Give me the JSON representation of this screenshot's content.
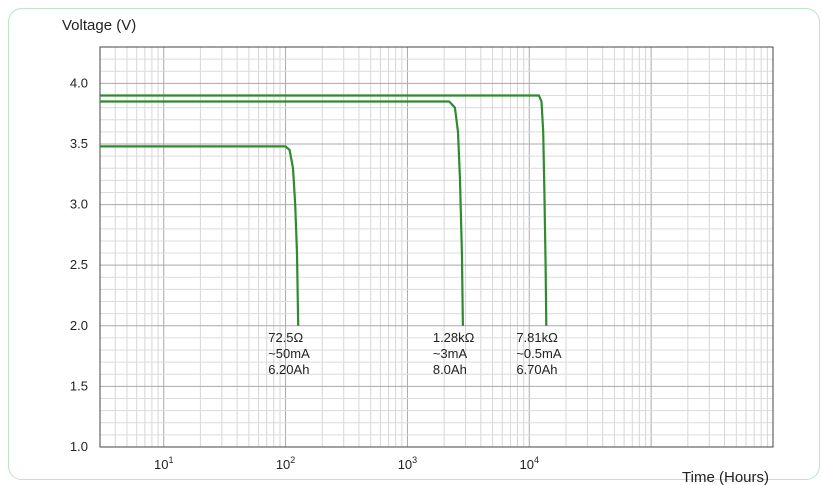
{
  "chart_data": {
    "type": "line",
    "title": "",
    "xlabel": "Time (Hours)",
    "ylabel": "Voltage (V)",
    "x_scale": "log",
    "xlim": [
      3,
      1000000
    ],
    "ylim": [
      1.0,
      4.3
    ],
    "grid": true,
    "y_ticks": [
      "4.0",
      "3.5",
      "3.0",
      "2.5",
      "2.0",
      "1.5",
      "1.0"
    ],
    "x_tick_labels": [
      {
        "base": "10",
        "exp": "1"
      },
      {
        "base": "10",
        "exp": "2"
      },
      {
        "base": "10",
        "exp": "3"
      },
      {
        "base": "10",
        "exp": "4"
      }
    ],
    "line_color": "#2e8b2e",
    "series": [
      {
        "points": [
          [
            3,
            3.48
          ],
          [
            100,
            3.48
          ],
          [
            108,
            3.45
          ],
          [
            115,
            3.3
          ],
          [
            120,
            3.0
          ],
          [
            124,
            2.6
          ],
          [
            127,
            2.0
          ]
        ],
        "annotation": [
          "72.5Ω",
          "~50mA",
          "6.20Ah"
        ]
      },
      {
        "points": [
          [
            3,
            3.85
          ],
          [
            2200,
            3.85
          ],
          [
            2450,
            3.8
          ],
          [
            2600,
            3.6
          ],
          [
            2700,
            3.2
          ],
          [
            2800,
            2.6
          ],
          [
            2850,
            2.0
          ]
        ],
        "annotation": [
          "1.28kΩ",
          "~3mA",
          "8.0Ah"
        ]
      },
      {
        "points": [
          [
            3,
            3.9
          ],
          [
            12000,
            3.9
          ],
          [
            12600,
            3.85
          ],
          [
            13000,
            3.6
          ],
          [
            13300,
            3.1
          ],
          [
            13600,
            2.5
          ],
          [
            13800,
            2.0
          ]
        ],
        "annotation": [
          "7.81kΩ",
          "~0.5mA",
          "6.70Ah"
        ]
      }
    ]
  }
}
